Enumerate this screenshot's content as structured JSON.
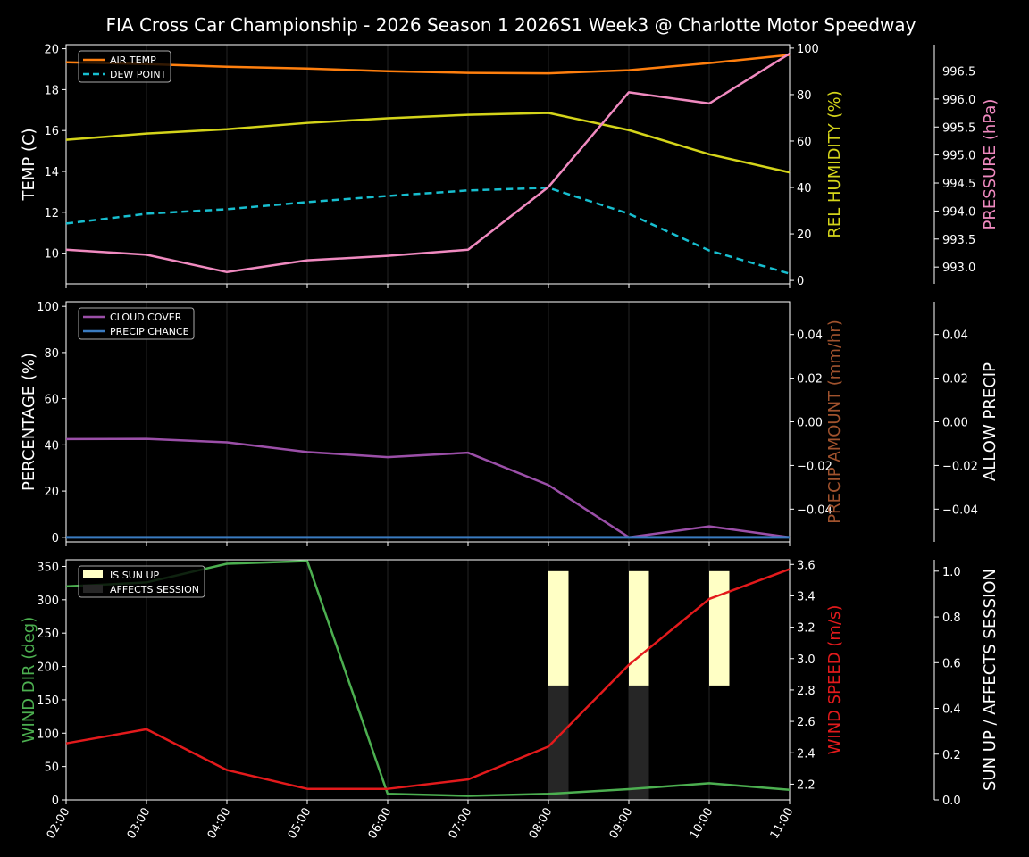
{
  "title": "FIA Cross Car Championship - 2026 Season 1 2026S1 Week3 @ Charlotte Motor Speedway",
  "colors": {
    "background": "#000000",
    "air_temp": "#ff7f0e",
    "dew_point": "#17becf",
    "humidity": "#d4d41a",
    "pressure": "#f08ac0",
    "cloud_cover": "#9b4fa8",
    "precip_chance": "#3a7bc0",
    "precip_amount_label": "#a0522d",
    "wind_dir": "#4caf50",
    "wind_speed": "#e31a1c",
    "sun_up": "#ffffc5",
    "affects_session": "#262626",
    "grid": "#1f1f1f",
    "axis": "#ffffff"
  },
  "chart_data": [
    {
      "type": "line",
      "panel": "top",
      "title": "FIA Cross Car Championship - 2026 Season 1 2026S1 Week3 @ Charlotte Motor Speedway",
      "x": [
        "02:00",
        "03:00",
        "04:00",
        "05:00",
        "06:00",
        "07:00",
        "08:00",
        "09:00",
        "10:00",
        "11:00"
      ],
      "ylabel": "TEMP (C)",
      "ylim": [
        8.5,
        20.2
      ],
      "yticks": [
        10,
        12,
        14,
        16,
        18,
        20
      ],
      "y2label": "REL HUMIDITY (%)",
      "y2lim": [
        -1.5,
        101.5
      ],
      "y2ticks": [
        0,
        20,
        40,
        60,
        80,
        100
      ],
      "y3label": "PRESSURE (hPa)",
      "y3lim": [
        992.7,
        996.97
      ],
      "y3ticks": [
        "993.0",
        "993.5",
        "994.0",
        "994.5",
        "995.0",
        "995.5",
        "996.0",
        "996.5"
      ],
      "legend": [
        "AIR TEMP",
        "DEW POINT"
      ],
      "legend_position": "upper left",
      "grid": "vertical",
      "series": [
        {
          "name": "AIR TEMP",
          "axis": "left",
          "style": "solid",
          "values": [
            19.34,
            19.25,
            19.12,
            19.03,
            18.9,
            18.82,
            18.8,
            18.95,
            19.3,
            19.7
          ]
        },
        {
          "name": "DEW POINT",
          "axis": "left",
          "style": "dashed",
          "values": [
            11.45,
            11.93,
            12.15,
            12.5,
            12.8,
            13.07,
            13.2,
            11.93,
            10.13,
            9.0
          ]
        },
        {
          "name": "REL HUMIDITY",
          "axis": "right",
          "style": "solid",
          "values": [
            60.5,
            63.2,
            65.1,
            67.8,
            69.8,
            71.3,
            72.1,
            64.7,
            54.3,
            46.5
          ]
        },
        {
          "name": "PRESSURE",
          "axis": "right2",
          "style": "solid",
          "values": [
            993.31,
            993.22,
            992.91,
            993.12,
            993.2,
            993.31,
            994.43,
            996.12,
            995.92,
            996.81
          ]
        }
      ]
    },
    {
      "type": "line",
      "panel": "middle",
      "x": [
        "02:00",
        "03:00",
        "04:00",
        "05:00",
        "06:00",
        "07:00",
        "08:00",
        "09:00",
        "10:00",
        "11:00"
      ],
      "ylabel": "PERCENTAGE (%)",
      "ylim": [
        -2,
        102
      ],
      "yticks": [
        0,
        20,
        40,
        60,
        80,
        100
      ],
      "y2label": "PRECIP AMOUNT (mm/hr)",
      "y2lim": [
        -0.055,
        0.055
      ],
      "y2ticks": [
        "0.04",
        "0.02",
        "0.00",
        "−0.02",
        "−0.04"
      ],
      "y3label": "ALLOW PRECIP",
      "y3lim": [
        -0.055,
        0.055
      ],
      "y3ticks": [
        "0.04",
        "0.02",
        "0.00",
        "−0.02",
        "−0.04"
      ],
      "legend": [
        "CLOUD COVER",
        "PRECIP CHANCE"
      ],
      "legend_position": "upper left",
      "grid": "vertical",
      "series": [
        {
          "name": "CLOUD COVER",
          "axis": "left",
          "values": [
            42.5,
            42.6,
            41.1,
            36.9,
            34.7,
            36.6,
            22.6,
            0.0,
            4.7,
            0.0
          ]
        },
        {
          "name": "PRECIP CHANCE",
          "axis": "left",
          "values": [
            0,
            0,
            0,
            0,
            0,
            0,
            0,
            0,
            0,
            0
          ]
        },
        {
          "name": "PRECIP AMOUNT",
          "axis": "right",
          "values": [
            0,
            0,
            0,
            0,
            0,
            0,
            0,
            0,
            0,
            0
          ]
        }
      ]
    },
    {
      "type": "line",
      "panel": "bottom",
      "x": [
        "02:00",
        "03:00",
        "04:00",
        "05:00",
        "06:00",
        "07:00",
        "08:00",
        "09:00",
        "10:00",
        "11:00"
      ],
      "xlabel_rotation": 60,
      "ylabel": "WIND DIR (deg)",
      "ylim": [
        0,
        360
      ],
      "yticks": [
        0,
        50,
        100,
        150,
        200,
        250,
        300,
        350
      ],
      "y2label": "WIND SPEED (m/s)",
      "y2lim": [
        2.1,
        3.63
      ],
      "y2ticks": [
        "2.2",
        "2.4",
        "2.6",
        "2.8",
        "3.0",
        "3.2",
        "3.4",
        "3.6"
      ],
      "y3label": "SUN UP / AFFECTS SESSION",
      "y3lim": [
        0,
        1.05
      ],
      "y3ticks": [
        "0.0",
        "0.2",
        "0.4",
        "0.6",
        "0.8",
        "1.0"
      ],
      "legend": [
        "IS SUN UP",
        "AFFECTS SESSION"
      ],
      "legend_position": "upper left",
      "grid": "vertical",
      "series": [
        {
          "name": "WIND DIR",
          "axis": "left",
          "values": [
            320,
            326,
            354,
            358,
            9,
            6,
            9,
            16,
            25,
            15
          ]
        },
        {
          "name": "WIND SPEED",
          "axis": "right",
          "values": [
            2.46,
            2.55,
            2.29,
            2.17,
            2.17,
            2.23,
            2.44,
            2.96,
            3.38,
            3.57
          ]
        },
        {
          "name": "AFFECTS SESSION",
          "axis": "right2",
          "type": "bar",
          "values": [
            0,
            0,
            0,
            0,
            0,
            0,
            0.5,
            0.5,
            0,
            0
          ]
        },
        {
          "name": "IS SUN UP",
          "axis": "right2",
          "type": "bar",
          "bottom": 0.5,
          "values": [
            0,
            0,
            0,
            0,
            0,
            0,
            0.5,
            0.5,
            0.5,
            0
          ]
        }
      ]
    }
  ]
}
